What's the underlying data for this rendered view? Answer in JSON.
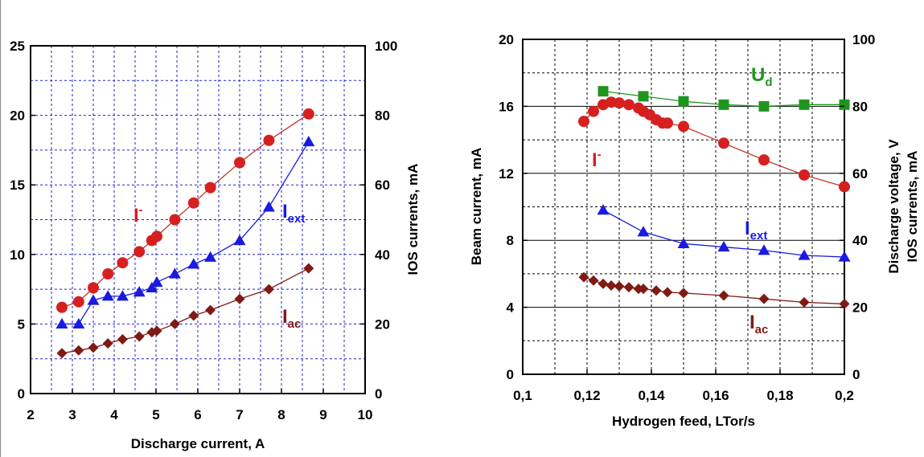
{
  "colors": {
    "red": "#d62020",
    "red_line": "#c0392b",
    "blue": "#1a1ae0",
    "dark_red": "#7f1a14",
    "green": "#1e961e",
    "grid": "#2020d0",
    "grid_right": "#000000"
  },
  "chart_data": [
    {
      "type": "line",
      "id": "left",
      "xlabel": "Discharge current, A",
      "ylabel_right": "IOS currents, mA",
      "xlim": [
        2,
        10
      ],
      "ylim_left": [
        0,
        25
      ],
      "ylim_right": [
        0,
        100
      ],
      "x_ticks": [
        "2",
        "3",
        "4",
        "5",
        "6",
        "7",
        "8",
        "9",
        "10"
      ],
      "y_ticks_left": [
        "0",
        "5",
        "10",
        "15",
        "20",
        "25"
      ],
      "y_ticks_right": [
        "0",
        "20",
        "40",
        "60",
        "80",
        "100"
      ],
      "grid": true,
      "series": [
        {
          "name": "I-",
          "label_main": "I",
          "label_sup": "-",
          "axis": "left",
          "marker": "circle",
          "color_key": "red",
          "x": [
            2.75,
            3.15,
            3.5,
            3.85,
            4.2,
            4.6,
            4.9,
            5.02,
            5.45,
            5.9,
            6.3,
            7.0,
            7.7,
            8.65
          ],
          "y": [
            6.2,
            6.6,
            7.6,
            8.6,
            9.4,
            10.2,
            11.0,
            11.3,
            12.5,
            13.7,
            14.8,
            16.6,
            18.2,
            20.1
          ]
        },
        {
          "name": "Iext",
          "label_main": "I",
          "label_sub": "ext",
          "axis": "left",
          "marker": "triangle",
          "color_key": "blue",
          "x": [
            2.75,
            3.15,
            3.5,
            3.85,
            4.2,
            4.6,
            4.9,
            5.02,
            5.45,
            5.9,
            6.3,
            7.0,
            7.7,
            8.65
          ],
          "y": [
            5.0,
            5.0,
            6.7,
            7.0,
            7.0,
            7.3,
            7.6,
            8.0,
            8.6,
            9.3,
            9.8,
            11.0,
            13.4,
            18.1
          ]
        },
        {
          "name": "Iac",
          "label_main": "I",
          "label_sub": "ac",
          "axis": "left",
          "marker": "diamond",
          "color_key": "dark_red",
          "x": [
            2.75,
            3.15,
            3.5,
            3.85,
            4.2,
            4.6,
            4.9,
            5.02,
            5.45,
            5.9,
            6.3,
            7.0,
            7.7,
            8.65
          ],
          "y": [
            2.9,
            3.1,
            3.3,
            3.6,
            3.9,
            4.1,
            4.4,
            4.5,
            5.0,
            5.6,
            6.0,
            6.8,
            7.5,
            9.0
          ]
        }
      ]
    },
    {
      "type": "line",
      "id": "right",
      "xlabel": "Hydrogen feed, LTor/s",
      "ylabel_left": "Beam current, mA",
      "ylabel_right_1": "Discharge voltage, V",
      "ylabel_right_2": "IOS currents, mA",
      "xlim": [
        0.1,
        0.2
      ],
      "ylim_left": [
        0,
        20
      ],
      "ylim_right": [
        0,
        100
      ],
      "x_ticks": [
        "0,1",
        "0,12",
        "0,14",
        "0,16",
        "0,18",
        "0,2"
      ],
      "y_ticks_left": [
        "0",
        "4",
        "8",
        "12",
        "16",
        "20"
      ],
      "y_ticks_right": [
        "0",
        "20",
        "40",
        "60",
        "80",
        "100"
      ],
      "grid": true,
      "series": [
        {
          "name": "Ud",
          "label_main": "U",
          "label_sub": "d",
          "axis": "left",
          "marker": "square",
          "color_key": "green",
          "x": [
            0.125,
            0.1375,
            0.15,
            0.1625,
            0.175,
            0.1875,
            0.2
          ],
          "y": [
            16.9,
            16.6,
            16.3,
            16.1,
            16.0,
            16.1,
            16.1
          ]
        },
        {
          "name": "I-",
          "label_main": "I",
          "label_sup": "-",
          "axis": "left",
          "marker": "circle",
          "color_key": "red",
          "x": [
            0.119,
            0.122,
            0.125,
            0.1275,
            0.13,
            0.133,
            0.136,
            0.1375,
            0.1395,
            0.1415,
            0.1435,
            0.145,
            0.15,
            0.1625,
            0.175,
            0.1875,
            0.2
          ],
          "y": [
            15.1,
            15.7,
            16.1,
            16.25,
            16.2,
            16.1,
            15.9,
            15.7,
            15.5,
            15.2,
            15.0,
            15.0,
            14.8,
            13.8,
            12.8,
            11.9,
            11.2
          ]
        },
        {
          "name": "Iext",
          "label_main": "I",
          "label_sub": "ext",
          "axis": "left",
          "marker": "triangle",
          "color_key": "blue",
          "x": [
            0.125,
            0.1375,
            0.15,
            0.1625,
            0.175,
            0.1875,
            0.2
          ],
          "y": [
            9.8,
            8.5,
            7.8,
            7.6,
            7.4,
            7.1,
            7.0
          ]
        },
        {
          "name": "Iac",
          "label_main": "I",
          "label_sub": "ac",
          "axis": "left",
          "marker": "diamond",
          "color_key": "dark_red",
          "x": [
            0.119,
            0.122,
            0.125,
            0.1275,
            0.13,
            0.133,
            0.136,
            0.1375,
            0.1415,
            0.145,
            0.15,
            0.1625,
            0.175,
            0.1875,
            0.2
          ],
          "y": [
            5.8,
            5.6,
            5.4,
            5.3,
            5.25,
            5.2,
            5.1,
            5.1,
            5.0,
            4.9,
            4.85,
            4.7,
            4.5,
            4.3,
            4.2
          ]
        }
      ]
    }
  ]
}
